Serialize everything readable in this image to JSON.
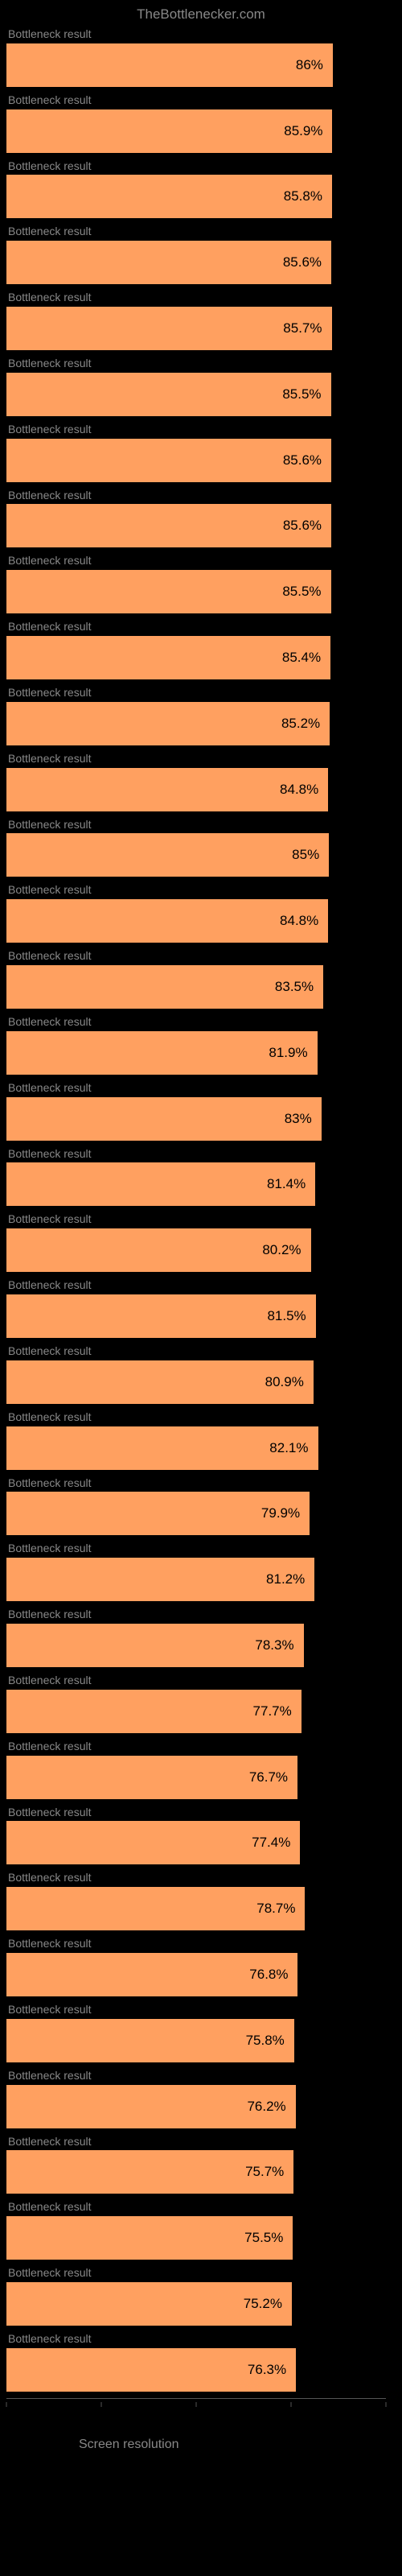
{
  "header": {
    "title": "TheBottlenecker.com"
  },
  "chart": {
    "type": "bar",
    "bar_color": "#ffa060",
    "background_color": "#000000",
    "label_color": "#888888",
    "value_color": "#000000",
    "value_fontsize": 17,
    "label_fontsize": 14,
    "max_value": 100,
    "rows": [
      {
        "label": "Bottleneck result",
        "value": 86,
        "display": "86%"
      },
      {
        "label": "Bottleneck result",
        "value": 85.9,
        "display": "85.9%"
      },
      {
        "label": "Bottleneck result",
        "value": 85.8,
        "display": "85.8%"
      },
      {
        "label": "Bottleneck result",
        "value": 85.6,
        "display": "85.6%"
      },
      {
        "label": "Bottleneck result",
        "value": 85.7,
        "display": "85.7%"
      },
      {
        "label": "Bottleneck result",
        "value": 85.5,
        "display": "85.5%"
      },
      {
        "label": "Bottleneck result",
        "value": 85.6,
        "display": "85.6%"
      },
      {
        "label": "Bottleneck result",
        "value": 85.6,
        "display": "85.6%"
      },
      {
        "label": "Bottleneck result",
        "value": 85.5,
        "display": "85.5%"
      },
      {
        "label": "Bottleneck result",
        "value": 85.4,
        "display": "85.4%"
      },
      {
        "label": "Bottleneck result",
        "value": 85.2,
        "display": "85.2%"
      },
      {
        "label": "Bottleneck result",
        "value": 84.8,
        "display": "84.8%"
      },
      {
        "label": "Bottleneck result",
        "value": 85,
        "display": "85%"
      },
      {
        "label": "Bottleneck result",
        "value": 84.8,
        "display": "84.8%"
      },
      {
        "label": "Bottleneck result",
        "value": 83.5,
        "display": "83.5%"
      },
      {
        "label": "Bottleneck result",
        "value": 81.9,
        "display": "81.9%"
      },
      {
        "label": "Bottleneck result",
        "value": 83,
        "display": "83%"
      },
      {
        "label": "Bottleneck result",
        "value": 81.4,
        "display": "81.4%"
      },
      {
        "label": "Bottleneck result",
        "value": 80.2,
        "display": "80.2%"
      },
      {
        "label": "Bottleneck result",
        "value": 81.5,
        "display": "81.5%"
      },
      {
        "label": "Bottleneck result",
        "value": 80.9,
        "display": "80.9%"
      },
      {
        "label": "Bottleneck result",
        "value": 82.1,
        "display": "82.1%"
      },
      {
        "label": "Bottleneck result",
        "value": 79.9,
        "display": "79.9%"
      },
      {
        "label": "Bottleneck result",
        "value": 81.2,
        "display": "81.2%"
      },
      {
        "label": "Bottleneck result",
        "value": 78.3,
        "display": "78.3%"
      },
      {
        "label": "Bottleneck result",
        "value": 77.7,
        "display": "77.7%"
      },
      {
        "label": "Bottleneck result",
        "value": 76.7,
        "display": "76.7%"
      },
      {
        "label": "Bottleneck result",
        "value": 77.4,
        "display": "77.4%"
      },
      {
        "label": "Bottleneck result",
        "value": 78.7,
        "display": "78.7%"
      },
      {
        "label": "Bottleneck result",
        "value": 76.8,
        "display": "76.8%"
      },
      {
        "label": "Bottleneck result",
        "value": 75.8,
        "display": "75.8%"
      },
      {
        "label": "Bottleneck result",
        "value": 76.2,
        "display": "76.2%"
      },
      {
        "label": "Bottleneck result",
        "value": 75.7,
        "display": "75.7%"
      },
      {
        "label": "Bottleneck result",
        "value": 75.5,
        "display": "75.5%"
      },
      {
        "label": "Bottleneck result",
        "value": 75.2,
        "display": "75.2%"
      },
      {
        "label": "Bottleneck result",
        "value": 76.3,
        "display": "76.3%"
      }
    ]
  },
  "x_axis": {
    "title": "Screen resolution",
    "ticks": [
      {
        "pos": 0,
        "label": ""
      },
      {
        "pos": 25,
        "label": ""
      },
      {
        "pos": 50,
        "label": ""
      },
      {
        "pos": 75,
        "label": ""
      },
      {
        "pos": 100,
        "label": ""
      }
    ]
  }
}
